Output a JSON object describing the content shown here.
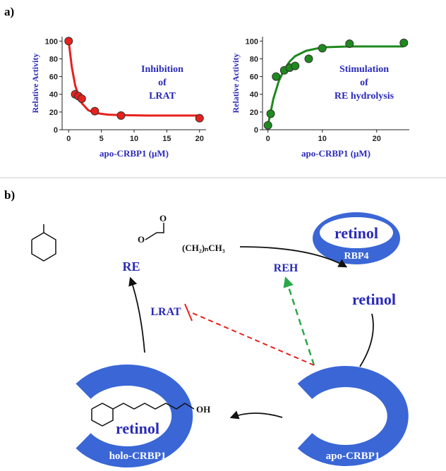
{
  "panel_labels": [
    "a)",
    "b)"
  ],
  "chart_data": [
    {
      "type": "scatter",
      "y_label": "Relative Activity",
      "x_label": "apo-CRBP1 (μM)",
      "annotation": [
        "Inhibition",
        "of",
        "LRAT"
      ],
      "xlim": [
        -1,
        21
      ],
      "xticks": [
        0,
        5,
        10,
        15,
        20
      ],
      "ylim": [
        0,
        105
      ],
      "yticks": [
        0,
        20,
        40,
        60,
        80,
        100
      ],
      "series": [
        {
          "mode": "line",
          "color": "#e8201c",
          "x": [
            0,
            0.5,
            1,
            1.5,
            2,
            3,
            4,
            6,
            8,
            12,
            20
          ],
          "values": [
            100,
            70,
            50,
            38,
            30,
            22,
            19,
            17,
            16.5,
            16,
            16
          ]
        },
        {
          "mode": "markers",
          "color": "#e8201c",
          "x": [
            0,
            1,
            1.5,
            2,
            4,
            8,
            20
          ],
          "values": [
            100,
            40,
            38,
            35,
            21,
            16,
            13
          ]
        }
      ]
    },
    {
      "type": "scatter",
      "y_label": "Relative Activity",
      "x_label": "apo-CRBP1 (μM)",
      "annotation": [
        "Stimulation",
        "of",
        "RE hydrolysis"
      ],
      "xlim": [
        -1,
        26
      ],
      "xticks": [
        0,
        10,
        20
      ],
      "ylim": [
        0,
        105
      ],
      "yticks": [
        0,
        20,
        40,
        60,
        80,
        100
      ],
      "series": [
        {
          "mode": "line",
          "color": "#1e8a1e",
          "x": [
            0,
            1,
            2,
            3,
            4,
            5,
            7,
            10,
            15,
            20,
            25
          ],
          "values": [
            5,
            35,
            55,
            68,
            77,
            83,
            89,
            93,
            94,
            94,
            94
          ]
        },
        {
          "mode": "markers",
          "color": "#1e8a1e",
          "x": [
            0,
            0.5,
            1.5,
            3,
            4,
            5,
            7.5,
            10,
            15,
            25
          ],
          "values": [
            5,
            18,
            60,
            67,
            70,
            72,
            80,
            92,
            97,
            98
          ]
        }
      ]
    }
  ],
  "diagram": {
    "re": "RE",
    "reh": "REH",
    "lrat": "LRAT",
    "rbp4_inner": "retinol",
    "rbp4": "RBP4",
    "free_retinol": "retinol",
    "holo_inner": "retinol",
    "holo": "holo-CRBP1",
    "apo": "apo-CRBP1",
    "atom_o1": "O",
    "atom_o2": "O",
    "chain": "(CH₂)ₙCH₃",
    "atom_oh": "OH"
  }
}
